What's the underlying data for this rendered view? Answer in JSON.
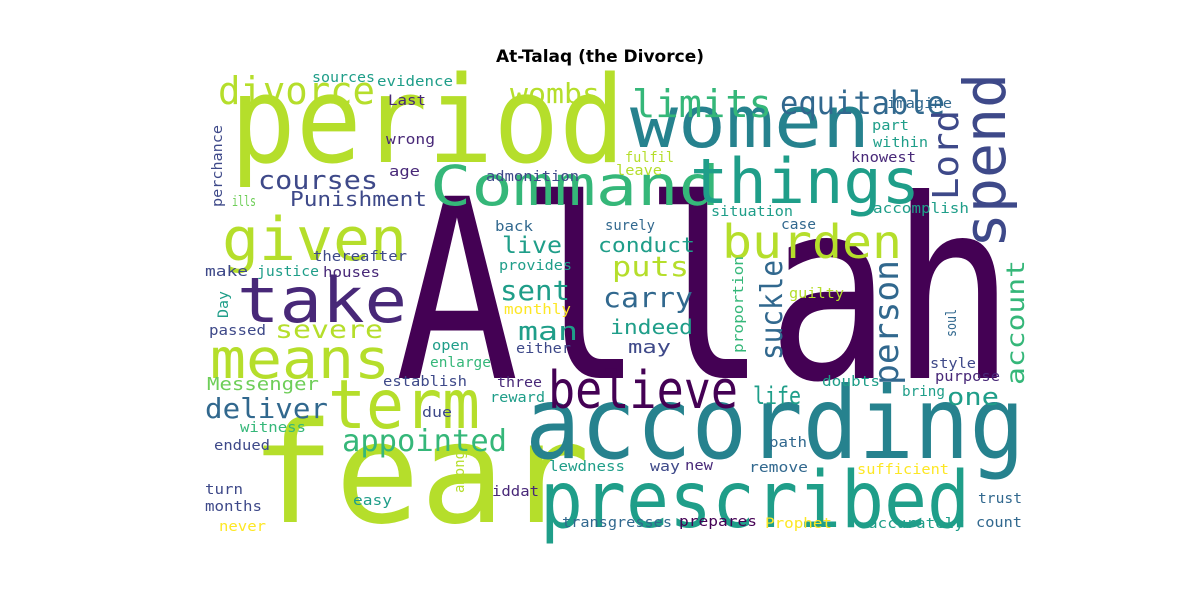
{
  "title": "At-Talaq (the Divorce)",
  "palette": {
    "dark_purple": "#440154",
    "purple": "#482878",
    "indigo": "#3e4989",
    "blue": "#31688e",
    "teal": "#26828e",
    "green_teal": "#1f9e89",
    "green": "#35b779",
    "light_green": "#6ece58",
    "lime": "#b5de2b",
    "yellow": "#fde725"
  },
  "words": [
    {
      "text": "Allah",
      "color": "dark_purple"
    },
    {
      "text": "period",
      "color": "lime"
    },
    {
      "text": "fear",
      "color": "lime"
    },
    {
      "text": "according",
      "color": "teal"
    },
    {
      "text": "women",
      "color": "teal"
    },
    {
      "text": "prescribed",
      "color": "green_teal"
    },
    {
      "text": "Command",
      "color": "green"
    },
    {
      "text": "things",
      "color": "green_teal"
    },
    {
      "text": "spend",
      "color": "indigo"
    },
    {
      "text": "given",
      "color": "lime"
    },
    {
      "text": "take",
      "color": "purple"
    },
    {
      "text": "means",
      "color": "lime"
    },
    {
      "text": "term",
      "color": "lime"
    },
    {
      "text": "believe",
      "color": "dark_purple"
    },
    {
      "text": "burden",
      "color": "lime"
    },
    {
      "text": "divorce",
      "color": "lime"
    },
    {
      "text": "limits",
      "color": "green"
    },
    {
      "text": "equitable",
      "color": "blue"
    },
    {
      "text": "Lord",
      "color": "indigo"
    },
    {
      "text": "appointed",
      "color": "green"
    },
    {
      "text": "deliver",
      "color": "blue"
    },
    {
      "text": "person",
      "color": "blue"
    },
    {
      "text": "suckle",
      "color": "blue"
    },
    {
      "text": "account",
      "color": "green"
    },
    {
      "text": "courses",
      "color": "indigo"
    },
    {
      "text": "wombs",
      "color": "lime"
    },
    {
      "text": "puts",
      "color": "lime"
    },
    {
      "text": "carry",
      "color": "blue"
    },
    {
      "text": "sent",
      "color": "green_teal"
    },
    {
      "text": "man",
      "color": "green_teal"
    },
    {
      "text": "live",
      "color": "green_teal"
    },
    {
      "text": "severe",
      "color": "lime"
    },
    {
      "text": "life",
      "color": "green_teal"
    },
    {
      "text": "one",
      "color": "green_teal"
    },
    {
      "text": "Punishment",
      "color": "indigo"
    },
    {
      "text": "conduct",
      "color": "green_teal"
    },
    {
      "text": "indeed",
      "color": "green_teal"
    },
    {
      "text": "Messenger",
      "color": "light_green"
    },
    {
      "text": "may",
      "color": "indigo"
    },
    {
      "text": "sources",
      "color": "green_teal"
    },
    {
      "text": "evidence",
      "color": "green_teal"
    },
    {
      "text": "Last",
      "color": "purple"
    },
    {
      "text": "imagine",
      "color": "blue"
    },
    {
      "text": "part",
      "color": "green_teal"
    },
    {
      "text": "within",
      "color": "green_teal"
    },
    {
      "text": "knowest",
      "color": "purple"
    },
    {
      "text": "wrong",
      "color": "purple"
    },
    {
      "text": "age",
      "color": "purple"
    },
    {
      "text": "fulfil",
      "color": "lime"
    },
    {
      "text": "leave",
      "color": "lime"
    },
    {
      "text": "admonition",
      "color": "indigo"
    },
    {
      "text": "perchance",
      "color": "indigo"
    },
    {
      "text": "ills",
      "color": "light_green"
    },
    {
      "text": "back",
      "color": "blue"
    },
    {
      "text": "surely",
      "color": "blue"
    },
    {
      "text": "situation",
      "color": "green_teal"
    },
    {
      "text": "case",
      "color": "blue"
    },
    {
      "text": "accomplish",
      "color": "green_teal"
    },
    {
      "text": "thereafter",
      "color": "indigo"
    },
    {
      "text": "houses",
      "color": "purple"
    },
    {
      "text": "provides",
      "color": "green_teal"
    },
    {
      "text": "make",
      "color": "indigo"
    },
    {
      "text": "justice",
      "color": "green_teal"
    },
    {
      "text": "Day",
      "color": "green_teal"
    },
    {
      "text": "monthly",
      "color": "yellow"
    },
    {
      "text": "guilty",
      "color": "lime"
    },
    {
      "text": "proportion",
      "color": "green"
    },
    {
      "text": "soul",
      "color": "blue"
    },
    {
      "text": "passed",
      "color": "indigo"
    },
    {
      "text": "open",
      "color": "green_teal"
    },
    {
      "text": "either",
      "color": "indigo"
    },
    {
      "text": "enlarge",
      "color": "green"
    },
    {
      "text": "style",
      "color": "indigo"
    },
    {
      "text": "purpose",
      "color": "purple"
    },
    {
      "text": "establish",
      "color": "indigo"
    },
    {
      "text": "three",
      "color": "purple"
    },
    {
      "text": "doubts",
      "color": "green_teal"
    },
    {
      "text": "bring",
      "color": "green_teal"
    },
    {
      "text": "due",
      "color": "indigo"
    },
    {
      "text": "reward",
      "color": "green_teal"
    },
    {
      "text": "witness",
      "color": "green"
    },
    {
      "text": "endued",
      "color": "indigo"
    },
    {
      "text": "path",
      "color": "blue"
    },
    {
      "text": "among",
      "color": "lime"
    },
    {
      "text": "lewdness",
      "color": "green_teal"
    },
    {
      "text": "way",
      "color": "indigo"
    },
    {
      "text": "new",
      "color": "purple"
    },
    {
      "text": "remove",
      "color": "blue"
    },
    {
      "text": "sufficient",
      "color": "yellow"
    },
    {
      "text": "turn",
      "color": "indigo"
    },
    {
      "text": "months",
      "color": "indigo"
    },
    {
      "text": "easy",
      "color": "green_teal"
    },
    {
      "text": "iddat",
      "color": "purple"
    },
    {
      "text": "trust",
      "color": "blue"
    },
    {
      "text": "never",
      "color": "yellow"
    },
    {
      "text": "transgresses",
      "color": "blue"
    },
    {
      "text": "prepares",
      "color": "dark_purple"
    },
    {
      "text": "Prophet",
      "color": "yellow"
    },
    {
      "text": "accurately",
      "color": "green_teal"
    },
    {
      "text": "count",
      "color": "blue"
    }
  ]
}
